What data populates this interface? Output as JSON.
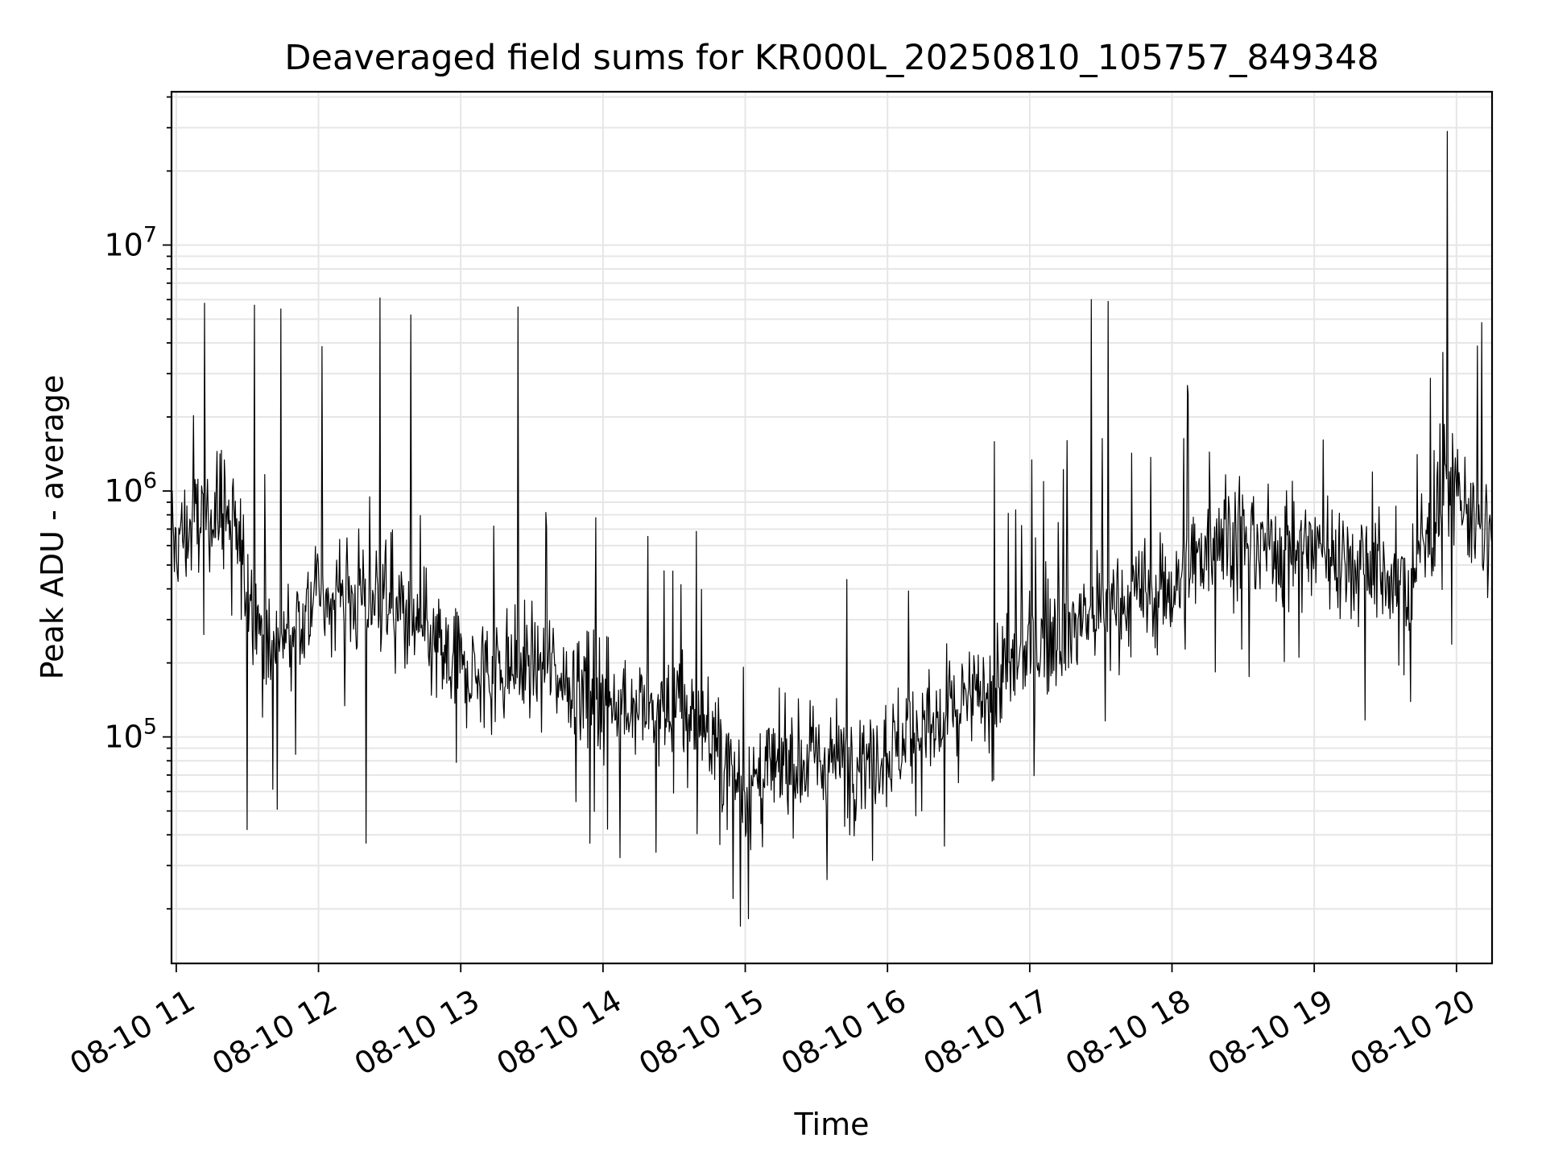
{
  "chart_data": {
    "type": "line",
    "title": "Deaveraged field sums for KR000L_20250810_105757_849348",
    "xlabel": "Time",
    "ylabel": "Peak ADU - average",
    "x_tick_labels": [
      "08-10 11",
      "08-10 12",
      "08-10 13",
      "08-10 14",
      "08-10 15",
      "08-10 16",
      "08-10 17",
      "08-10 18",
      "08-10 19",
      "08-10 20"
    ],
    "y_tick_labels": [
      {
        "base": "10",
        "exp": "5"
      },
      {
        "base": "10",
        "exp": "6"
      },
      {
        "base": "10",
        "exp": "7"
      }
    ],
    "xlim": [
      "2025-08-10 10:58",
      "2025-08-10 20:15"
    ],
    "ylim": [
      12000,
      42000000
    ],
    "yscale": "log",
    "grid": true,
    "line_color": "#000000",
    "grid_color": "#e6e6e6",
    "series": [
      {
        "x": [
          "2025-08-10 10:58",
          "2025-08-10 11:20",
          "2025-08-10 11:40",
          "2025-08-10 12:00",
          "2025-08-10 12:30",
          "2025-08-10 13:00",
          "2025-08-10 13:30",
          "2025-08-10 14:00",
          "2025-08-10 14:20",
          "2025-08-10 14:40",
          "2025-08-10 15:00",
          "2025-08-10 15:20",
          "2025-08-10 15:40",
          "2025-08-10 16:00",
          "2025-08-10 16:20",
          "2025-08-10 16:40",
          "2025-08-10 17:00",
          "2025-08-10 17:20",
          "2025-08-10 17:40",
          "2025-08-10 18:00",
          "2025-08-10 18:20",
          "2025-08-10 18:40",
          "2025-08-10 19:00",
          "2025-08-10 19:20",
          "2025-08-10 19:40",
          "2025-08-10 19:55",
          "2025-08-10 20:15"
        ],
        "y": [
          600000,
          900000,
          200000,
          400000,
          350000,
          180000,
          200000,
          150000,
          130000,
          120000,
          60000,
          80000,
          80000,
          90000,
          110000,
          150000,
          220000,
          300000,
          350000,
          400000,
          700000,
          600000,
          600000,
          500000,
          400000,
          1100000,
          600000
        ]
      }
    ],
    "spikes": [
      {
        "x": "2025-08-10 11:12",
        "y": 5800000
      },
      {
        "x": "2025-08-10 11:33",
        "y": 5700000
      },
      {
        "x": "2025-08-10 11:44",
        "y": 5500000
      },
      {
        "x": "2025-08-10 12:26",
        "y": 6100000
      },
      {
        "x": "2025-08-10 12:39",
        "y": 5200000
      },
      {
        "x": "2025-08-10 13:24",
        "y": 5600000
      },
      {
        "x": "2025-08-10 17:26",
        "y": 6000000
      },
      {
        "x": "2025-08-10 17:33",
        "y": 5900000
      },
      {
        "x": "2025-08-10 19:56",
        "y": 29000000
      },
      {
        "x": "2025-08-10 14:58",
        "y": 17000
      },
      {
        "x": "2025-08-10 12:20",
        "y": 37000
      },
      {
        "x": "2025-08-10 11:30",
        "y": 42000
      }
    ]
  }
}
